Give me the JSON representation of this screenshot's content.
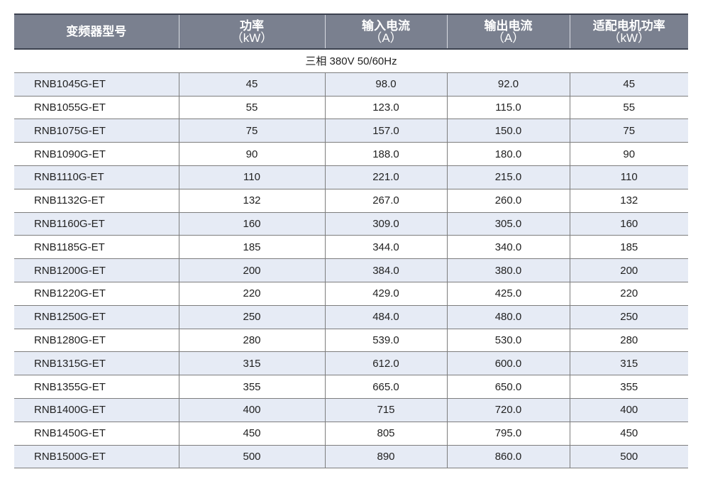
{
  "headers": [
    {
      "title": "变频器型号",
      "unit": ""
    },
    {
      "title": "功率",
      "unit": "（kW）"
    },
    {
      "title": "输入电流",
      "unit": "（A）"
    },
    {
      "title": "输出电流",
      "unit": "（A）"
    },
    {
      "title": "适配电机功率",
      "unit": "（kW）"
    }
  ],
  "subheader": "三相 380V  50/60Hz",
  "rows": [
    [
      "RNB1045G-ET",
      "45",
      "98.0",
      "92.0",
      "45"
    ],
    [
      "RNB1055G-ET",
      "55",
      "123.0",
      "115.0",
      "55"
    ],
    [
      "RNB1075G-ET",
      "75",
      "157.0",
      "150.0",
      "75"
    ],
    [
      "RNB1090G-ET",
      "90",
      "188.0",
      "180.0",
      "90"
    ],
    [
      "RNB1110G-ET",
      "110",
      "221.0",
      "215.0",
      "110"
    ],
    [
      "RNB1132G-ET",
      "132",
      "267.0",
      "260.0",
      "132"
    ],
    [
      "RNB1160G-ET",
      "160",
      "309.0",
      "305.0",
      "160"
    ],
    [
      "RNB1185G-ET",
      "185",
      "344.0",
      "340.0",
      "185"
    ],
    [
      "RNB1200G-ET",
      "200",
      "384.0",
      "380.0",
      "200"
    ],
    [
      "RNB1220G-ET",
      "220",
      "429.0",
      "425.0",
      "220"
    ],
    [
      "RNB1250G-ET",
      "250",
      "484.0",
      "480.0",
      "250"
    ],
    [
      "RNB1280G-ET",
      "280",
      "539.0",
      "530.0",
      "280"
    ],
    [
      "RNB1315G-ET",
      "315",
      "612.0",
      "600.0",
      "315"
    ],
    [
      "RNB1355G-ET",
      "355",
      "665.0",
      "650.0",
      "355"
    ],
    [
      "RNB1400G-ET",
      "400",
      "715",
      "720.0",
      "400"
    ],
    [
      "RNB1450G-ET",
      "450",
      "805",
      "795.0",
      "450"
    ],
    [
      "RNB1500G-ET",
      "500",
      "890",
      "860.0",
      "500"
    ]
  ]
}
